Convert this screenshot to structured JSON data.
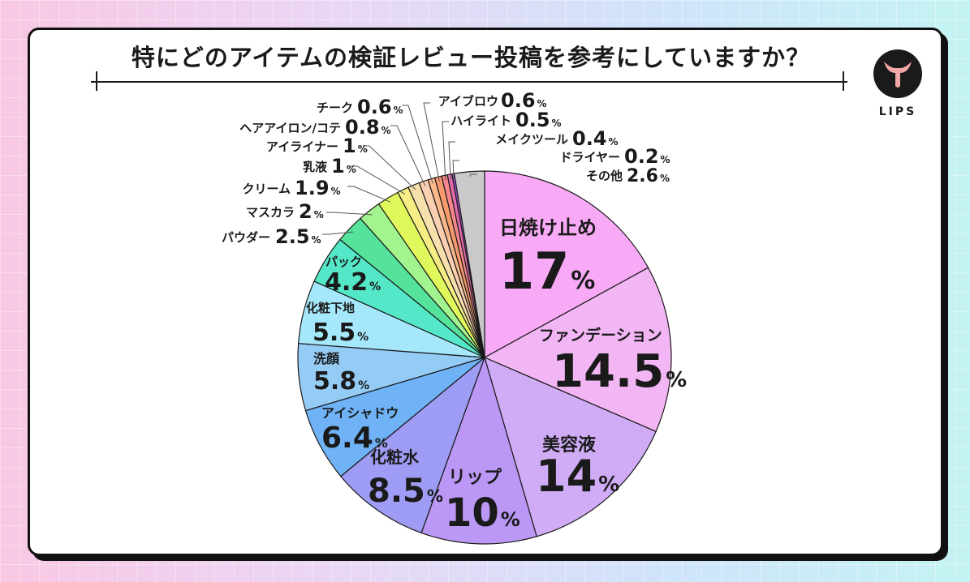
{
  "title": "特にどのアイテムの検証レビュー投稿を参考にしていますか？",
  "logo": {
    "text": "LIPS",
    "icon": "deer-icon"
  },
  "chart_data": {
    "type": "pie",
    "unit": "%",
    "slices": [
      {
        "label": "日焼け止め",
        "value": 17,
        "display": "17",
        "color": "#f9aaf6"
      },
      {
        "label": "ファンデーション",
        "value": 14.5,
        "display": "14.5",
        "color": "#f3b6f5"
      },
      {
        "label": "美容液",
        "value": 14,
        "display": "14",
        "color": "#d1acf6"
      },
      {
        "label": "リップ",
        "value": 10,
        "display": "10",
        "color": "#bb98f6"
      },
      {
        "label": "化粧水",
        "value": 8.5,
        "display": "8.5",
        "color": "#9e9cf4"
      },
      {
        "label": "アイシャドウ",
        "value": 6.4,
        "display": "6.4",
        "color": "#6fb3f6"
      },
      {
        "label": "洗顔",
        "value": 5.8,
        "display": "5.8",
        "color": "#94ccf6"
      },
      {
        "label": "化粧下地",
        "value": 5.5,
        "display": "5.5",
        "color": "#a5e8fb"
      },
      {
        "label": "パック",
        "value": 4.2,
        "display": "4.2",
        "color": "#54e8c8"
      },
      {
        "label": "パウダー",
        "value": 2.5,
        "display": "2.5",
        "color": "#55e39c"
      },
      {
        "label": "マスカラ",
        "value": 2,
        "display": "2",
        "color": "#a2f58e"
      },
      {
        "label": "クリーム",
        "value": 1.9,
        "display": "1.9",
        "color": "#e0f85c"
      },
      {
        "label": "乳液",
        "value": 1,
        "display": "1",
        "color": "#f6ee84"
      },
      {
        "label": "アイライナー",
        "value": 1,
        "display": "1",
        "color": "#f8e0ad"
      },
      {
        "label": "ヘアアイロン/コテ",
        "value": 0.8,
        "display": "0.8",
        "color": "#fbcfb2"
      },
      {
        "label": "チーク",
        "value": 0.6,
        "display": "0.6",
        "color": "#f9b98c"
      },
      {
        "label": "アイブロウ",
        "value": 0.6,
        "display": "0.6",
        "color": "#f89a6e"
      },
      {
        "label": "ハイライト",
        "value": 0.5,
        "display": "0.5",
        "color": "#f6878c"
      },
      {
        "label": "メイクツール",
        "value": 0.4,
        "display": "0.4",
        "color": "#e26aaa"
      },
      {
        "label": "ドライヤー",
        "value": 0.2,
        "display": "0.2",
        "color": "#a24fd0"
      },
      {
        "label": "その他",
        "value": 2.6,
        "display": "2.6",
        "color": "#c9c9c9"
      }
    ]
  }
}
